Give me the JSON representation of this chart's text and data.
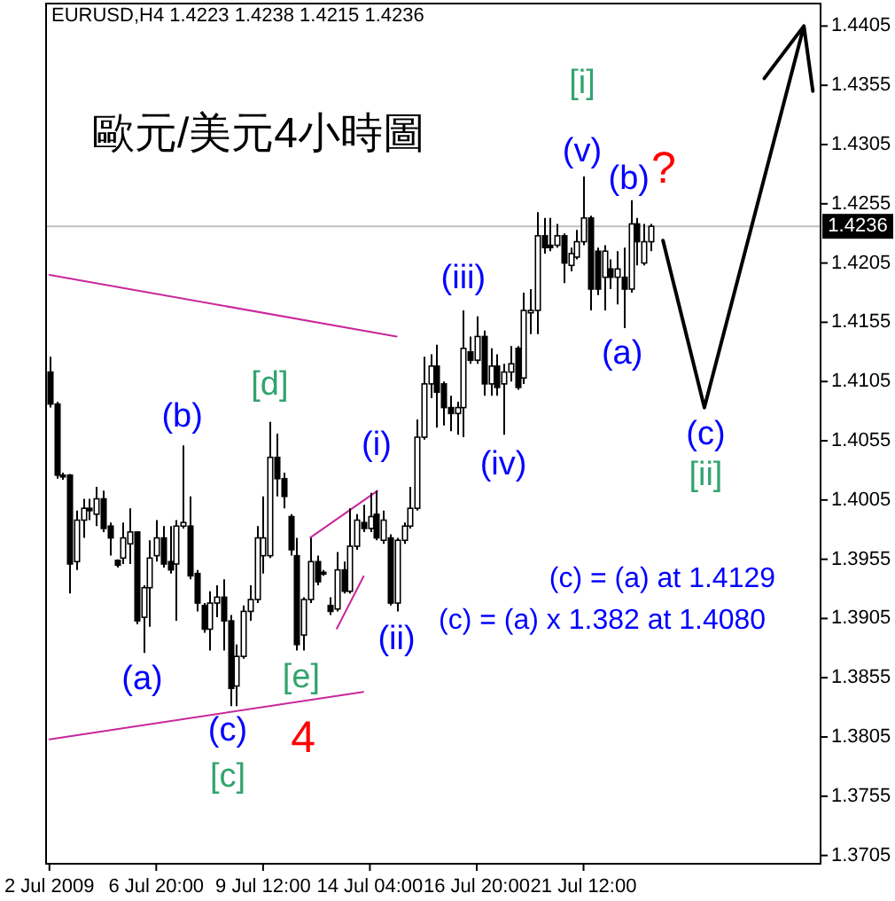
{
  "chart_data": {
    "type": "candlestick",
    "title": "歐元/美元4小時圖",
    "subtitle": "EURUSD,H4  1.4223 1.4238 1.4215 1.4236",
    "categories": [
      "2 Jul 2009",
      null,
      null,
      null,
      null,
      null,
      null,
      null,
      null,
      null,
      null,
      null,
      null,
      null,
      null,
      null,
      "6 Jul 20:00",
      null,
      null,
      null,
      null,
      null,
      null,
      null,
      null,
      null,
      null,
      null,
      null,
      null,
      null,
      null,
      "9 Jul 12:00",
      null,
      null,
      null,
      null,
      null,
      null,
      null,
      null,
      null,
      null,
      null,
      null,
      null,
      null,
      null,
      "14 Jul 04:00",
      null,
      null,
      null,
      null,
      null,
      null,
      null,
      null,
      null,
      null,
      null,
      null,
      null,
      null,
      null,
      "16 Jul 20:00",
      null,
      null,
      null,
      null,
      null,
      null,
      null,
      null,
      null,
      null,
      null,
      null,
      null,
      null,
      null,
      "21 Jul 12:00",
      null,
      null,
      null,
      null,
      null,
      null,
      null,
      null,
      null,
      null,
      null,
      null,
      null,
      null,
      null,
      null,
      null,
      null,
      null,
      null,
      null,
      null,
      null,
      null,
      null,
      null,
      null,
      null,
      null,
      null,
      null,
      null,
      null,
      null,
      null
    ],
    "ohlc": [
      [
        1.4113,
        1.4126,
        1.4083,
        1.4086
      ],
      [
        1.4086,
        1.4088,
        1.4023,
        1.4026
      ],
      [
        1.4026,
        1.4028,
        1.4022,
        1.4025
      ],
      [
        1.4026,
        1.4027,
        1.3926,
        1.3951
      ],
      [
        1.3953,
        1.3996,
        1.3946,
        1.3988
      ],
      [
        1.3988,
        1.4006,
        1.3973,
        1.3998
      ],
      [
        1.3998,
        1.4006,
        1.3988,
        1.3996
      ],
      [
        1.3993,
        1.4016,
        1.3983,
        1.4006
      ],
      [
        1.4006,
        1.4013,
        1.3978,
        1.3981
      ],
      [
        1.3983,
        1.3986,
        1.3958,
        1.3973
      ],
      [
        1.3954,
        1.3955,
        1.3948,
        1.395
      ],
      [
        1.3956,
        1.3986,
        1.3951,
        1.3973
      ],
      [
        1.3968,
        1.3998,
        1.3951,
        1.3978
      ],
      [
        1.3978,
        1.3978,
        1.39,
        1.3903
      ],
      [
        1.3906,
        1.3933,
        1.3876,
        1.3931
      ],
      [
        1.3931,
        1.3971,
        1.3898,
        1.3956
      ],
      [
        1.3958,
        1.3988,
        1.3953,
        1.3973
      ],
      [
        1.3973,
        1.3983,
        1.3948,
        1.3951
      ],
      [
        1.3953,
        1.3983,
        1.3943,
        1.3946
      ],
      [
        1.3951,
        1.3988,
        1.3903,
        1.3983
      ],
      [
        1.3983,
        1.4051,
        1.3981,
        1.3986
      ],
      [
        1.3983,
        1.4008,
        1.3938,
        1.3941
      ],
      [
        1.3943,
        1.3946,
        1.3911,
        1.3918
      ],
      [
        1.3916,
        1.3918,
        1.3893,
        1.3896
      ],
      [
        1.3896,
        1.3928,
        1.3878,
        1.3918
      ],
      [
        1.3918,
        1.3933,
        1.3906,
        1.3923
      ],
      [
        1.3923,
        1.3938,
        1.3878,
        1.3903
      ],
      [
        1.3903,
        1.3908,
        1.3831,
        1.3846
      ],
      [
        1.3848,
        1.3883,
        1.3831,
        1.3873
      ],
      [
        1.3873,
        1.3916,
        1.3871,
        1.3911
      ],
      [
        1.3911,
        1.3933,
        1.3903,
        1.3921
      ],
      [
        1.3921,
        1.3983,
        1.3918,
        1.3973
      ],
      [
        1.3958,
        1.4008,
        1.3943,
        1.3973
      ],
      [
        1.3958,
        1.4071,
        1.3956,
        1.4041
      ],
      [
        1.4041,
        1.4061,
        1.4008,
        1.4023
      ],
      [
        1.4023,
        1.4028,
        1.3998,
        1.4008
      ],
      [
        1.3991,
        1.3993,
        1.3958,
        1.3963
      ],
      [
        1.3958,
        1.3973,
        1.3878,
        1.3883
      ],
      [
        1.3891,
        1.3923,
        1.3878,
        1.3921
      ],
      [
        1.3921,
        1.3973,
        1.3918,
        1.3953
      ],
      [
        1.3953,
        1.3958,
        1.3933,
        1.3936
      ],
      [
        1.3944,
        1.3946,
        1.3941,
        1.3943
      ],
      [
        1.3916,
        1.3923,
        1.3908,
        1.3911
      ],
      [
        1.3913,
        1.3961,
        1.3911,
        1.3946
      ],
      [
        1.3946,
        1.3953,
        1.3926,
        1.3928
      ],
      [
        1.3928,
        1.3998,
        1.3926,
        1.3966
      ],
      [
        1.3966,
        1.3993,
        1.3963,
        1.3988
      ],
      [
        1.3986,
        1.4001,
        1.3978,
        1.3981
      ],
      [
        1.3981,
        1.4011,
        1.3978,
        1.3991
      ],
      [
        1.3993,
        1.4013,
        1.3971,
        1.3973
      ],
      [
        1.3971,
        1.3996,
        1.3968,
        1.3988
      ],
      [
        1.3973,
        1.3976,
        1.3916,
        1.3918
      ],
      [
        1.3918,
        1.3973,
        1.3911,
        1.3971
      ],
      [
        1.3971,
        1.3986,
        1.3968,
        1.3983
      ],
      [
        1.3983,
        1.4016,
        1.3981,
        1.3998
      ],
      [
        1.3998,
        1.4073,
        1.3996,
        1.4058
      ],
      [
        1.4058,
        1.4126,
        1.4056,
        1.4103
      ],
      [
        1.4103,
        1.4128,
        1.4091,
        1.4118
      ],
      [
        1.4118,
        1.4136,
        1.4066,
        1.4096
      ],
      [
        1.4103,
        1.4105,
        1.4068,
        1.4083
      ],
      [
        1.4083,
        1.4093,
        1.4063,
        1.4078
      ],
      [
        1.4078,
        1.4088,
        1.406,
        1.4083
      ],
      [
        1.4083,
        1.4165,
        1.4058,
        1.4133
      ],
      [
        1.413,
        1.4143,
        1.412,
        1.4123
      ],
      [
        1.4123,
        1.416,
        1.412,
        1.4143
      ],
      [
        1.4143,
        1.4148,
        1.4093,
        1.4103
      ],
      [
        1.4103,
        1.4133,
        1.4093,
        1.4118
      ],
      [
        1.4118,
        1.4128,
        1.4093,
        1.41
      ],
      [
        1.4103,
        1.412,
        1.406,
        1.4113
      ],
      [
        1.4113,
        1.4135,
        1.4105,
        1.412
      ],
      [
        1.4133,
        1.4135,
        1.4098,
        1.41
      ],
      [
        1.4108,
        1.418,
        1.4103,
        1.4165
      ],
      [
        1.4163,
        1.4183,
        1.4145,
        1.4165
      ],
      [
        1.4165,
        1.4248,
        1.4145,
        1.4228
      ],
      [
        1.4228,
        1.4243,
        1.4213,
        1.4218
      ],
      [
        1.422,
        1.4243,
        1.4215,
        1.4218
      ],
      [
        1.422,
        1.4238,
        1.4218,
        1.4228
      ],
      [
        1.4228,
        1.423,
        1.4188,
        1.4205
      ],
      [
        1.4203,
        1.4218,
        1.4198,
        1.4213
      ],
      [
        1.421,
        1.4233,
        1.4208,
        1.4223
      ],
      [
        1.4223,
        1.4278,
        1.422,
        1.4243
      ],
      [
        1.4243,
        1.4245,
        1.4165,
        1.4183
      ],
      [
        1.4215,
        1.4218,
        1.4178,
        1.4183
      ],
      [
        1.4193,
        1.422,
        1.4165,
        1.4215
      ],
      [
        1.42,
        1.4208,
        1.4183,
        1.4193
      ],
      [
        1.4193,
        1.4215,
        1.417,
        1.42
      ],
      [
        1.4193,
        1.4218,
        1.415,
        1.4183
      ],
      [
        1.4183,
        1.4258,
        1.418,
        1.4238
      ],
      [
        1.4238,
        1.4243,
        1.4203,
        1.4223
      ],
      [
        1.4205,
        1.4238,
        1.4203,
        1.4223
      ],
      [
        1.4223,
        1.4238,
        1.4215,
        1.4236
      ],
      null,
      null,
      null,
      null,
      null,
      null,
      null,
      null,
      null,
      null,
      null,
      null,
      null,
      null,
      null,
      null,
      null,
      null,
      null,
      null,
      null,
      null,
      null,
      null,
      null
    ],
    "ylim": [
      1.3698,
      1.4424
    ],
    "yticks": [
      1.3705,
      1.3755,
      1.3805,
      1.3855,
      1.3905,
      1.3955,
      1.4005,
      1.4055,
      1.4105,
      1.4155,
      1.4205,
      1.4255,
      1.4305,
      1.4355,
      1.4405
    ],
    "series": [
      {
        "type": "line",
        "color": "#c8289b",
        "values": [
          1.4195,
          null,
          null,
          null,
          null,
          null,
          null,
          null,
          null,
          null,
          null,
          null,
          null,
          null,
          null,
          null,
          null,
          null,
          null,
          null,
          null,
          null,
          null,
          null,
          null,
          null,
          null,
          null,
          null,
          null,
          null,
          null,
          null,
          null,
          null,
          null,
          null,
          null,
          null,
          null,
          null,
          null,
          null,
          null,
          null,
          null,
          null,
          null,
          null,
          null,
          null,
          null,
          1.4143,
          null,
          null,
          null,
          null,
          null,
          null,
          null,
          null,
          null,
          null,
          null,
          null,
          null,
          null,
          null,
          null,
          null,
          null,
          null,
          null,
          null,
          null,
          null,
          null,
          null,
          null,
          null,
          null,
          null,
          null,
          null,
          null,
          null,
          null,
          null,
          null,
          null,
          null,
          null,
          null,
          null,
          null,
          null,
          null,
          null,
          null,
          null,
          null,
          null,
          null,
          null,
          null,
          null,
          null,
          null,
          null,
          null,
          null,
          null,
          null,
          null,
          null,
          null
        ]
      },
      {
        "type": "line",
        "color": "#c8289b",
        "values": [
          1.3803,
          null,
          null,
          null,
          null,
          null,
          null,
          null,
          null,
          null,
          null,
          null,
          null,
          null,
          null,
          null,
          null,
          null,
          null,
          null,
          null,
          null,
          null,
          null,
          null,
          null,
          null,
          null,
          null,
          null,
          null,
          null,
          null,
          null,
          null,
          null,
          null,
          null,
          null,
          null,
          null,
          null,
          null,
          null,
          null,
          null,
          null,
          1.3843,
          null,
          null,
          null,
          null,
          null,
          null,
          null,
          null,
          null,
          null,
          null,
          null,
          null,
          null,
          null,
          null,
          null,
          null,
          null,
          null,
          null,
          null,
          null,
          null,
          null,
          null,
          null,
          null,
          null,
          null,
          null,
          null,
          null,
          null,
          null,
          null,
          null,
          null,
          null,
          null,
          null,
          null,
          null,
          null,
          null,
          null,
          null,
          null,
          null,
          null,
          null,
          null,
          null,
          null,
          null,
          null,
          null,
          null,
          null,
          null,
          null,
          null,
          null,
          null,
          null,
          null,
          null,
          null
        ]
      }
    ],
    "ref_lines": [
      {
        "axis": "y",
        "value": 1.4236,
        "label": "1.4236",
        "color": "#c0c0c0"
      }
    ],
    "annotations": [
      "(b)",
      "(a)",
      "[d]",
      "(c)",
      "[c]",
      "[e]",
      "4",
      {
        "text": "(i)",
        "y": 1.4013
      },
      "(ii)",
      "(iii)",
      "(iv)",
      "(v)",
      "[i]",
      "(b)",
      "?",
      "(a)",
      "(c)",
      "[ii]",
      "(c) = (a) at 1.4129",
      "(c) = (a) x 1.382 at 1.4080"
    ]
  }
}
